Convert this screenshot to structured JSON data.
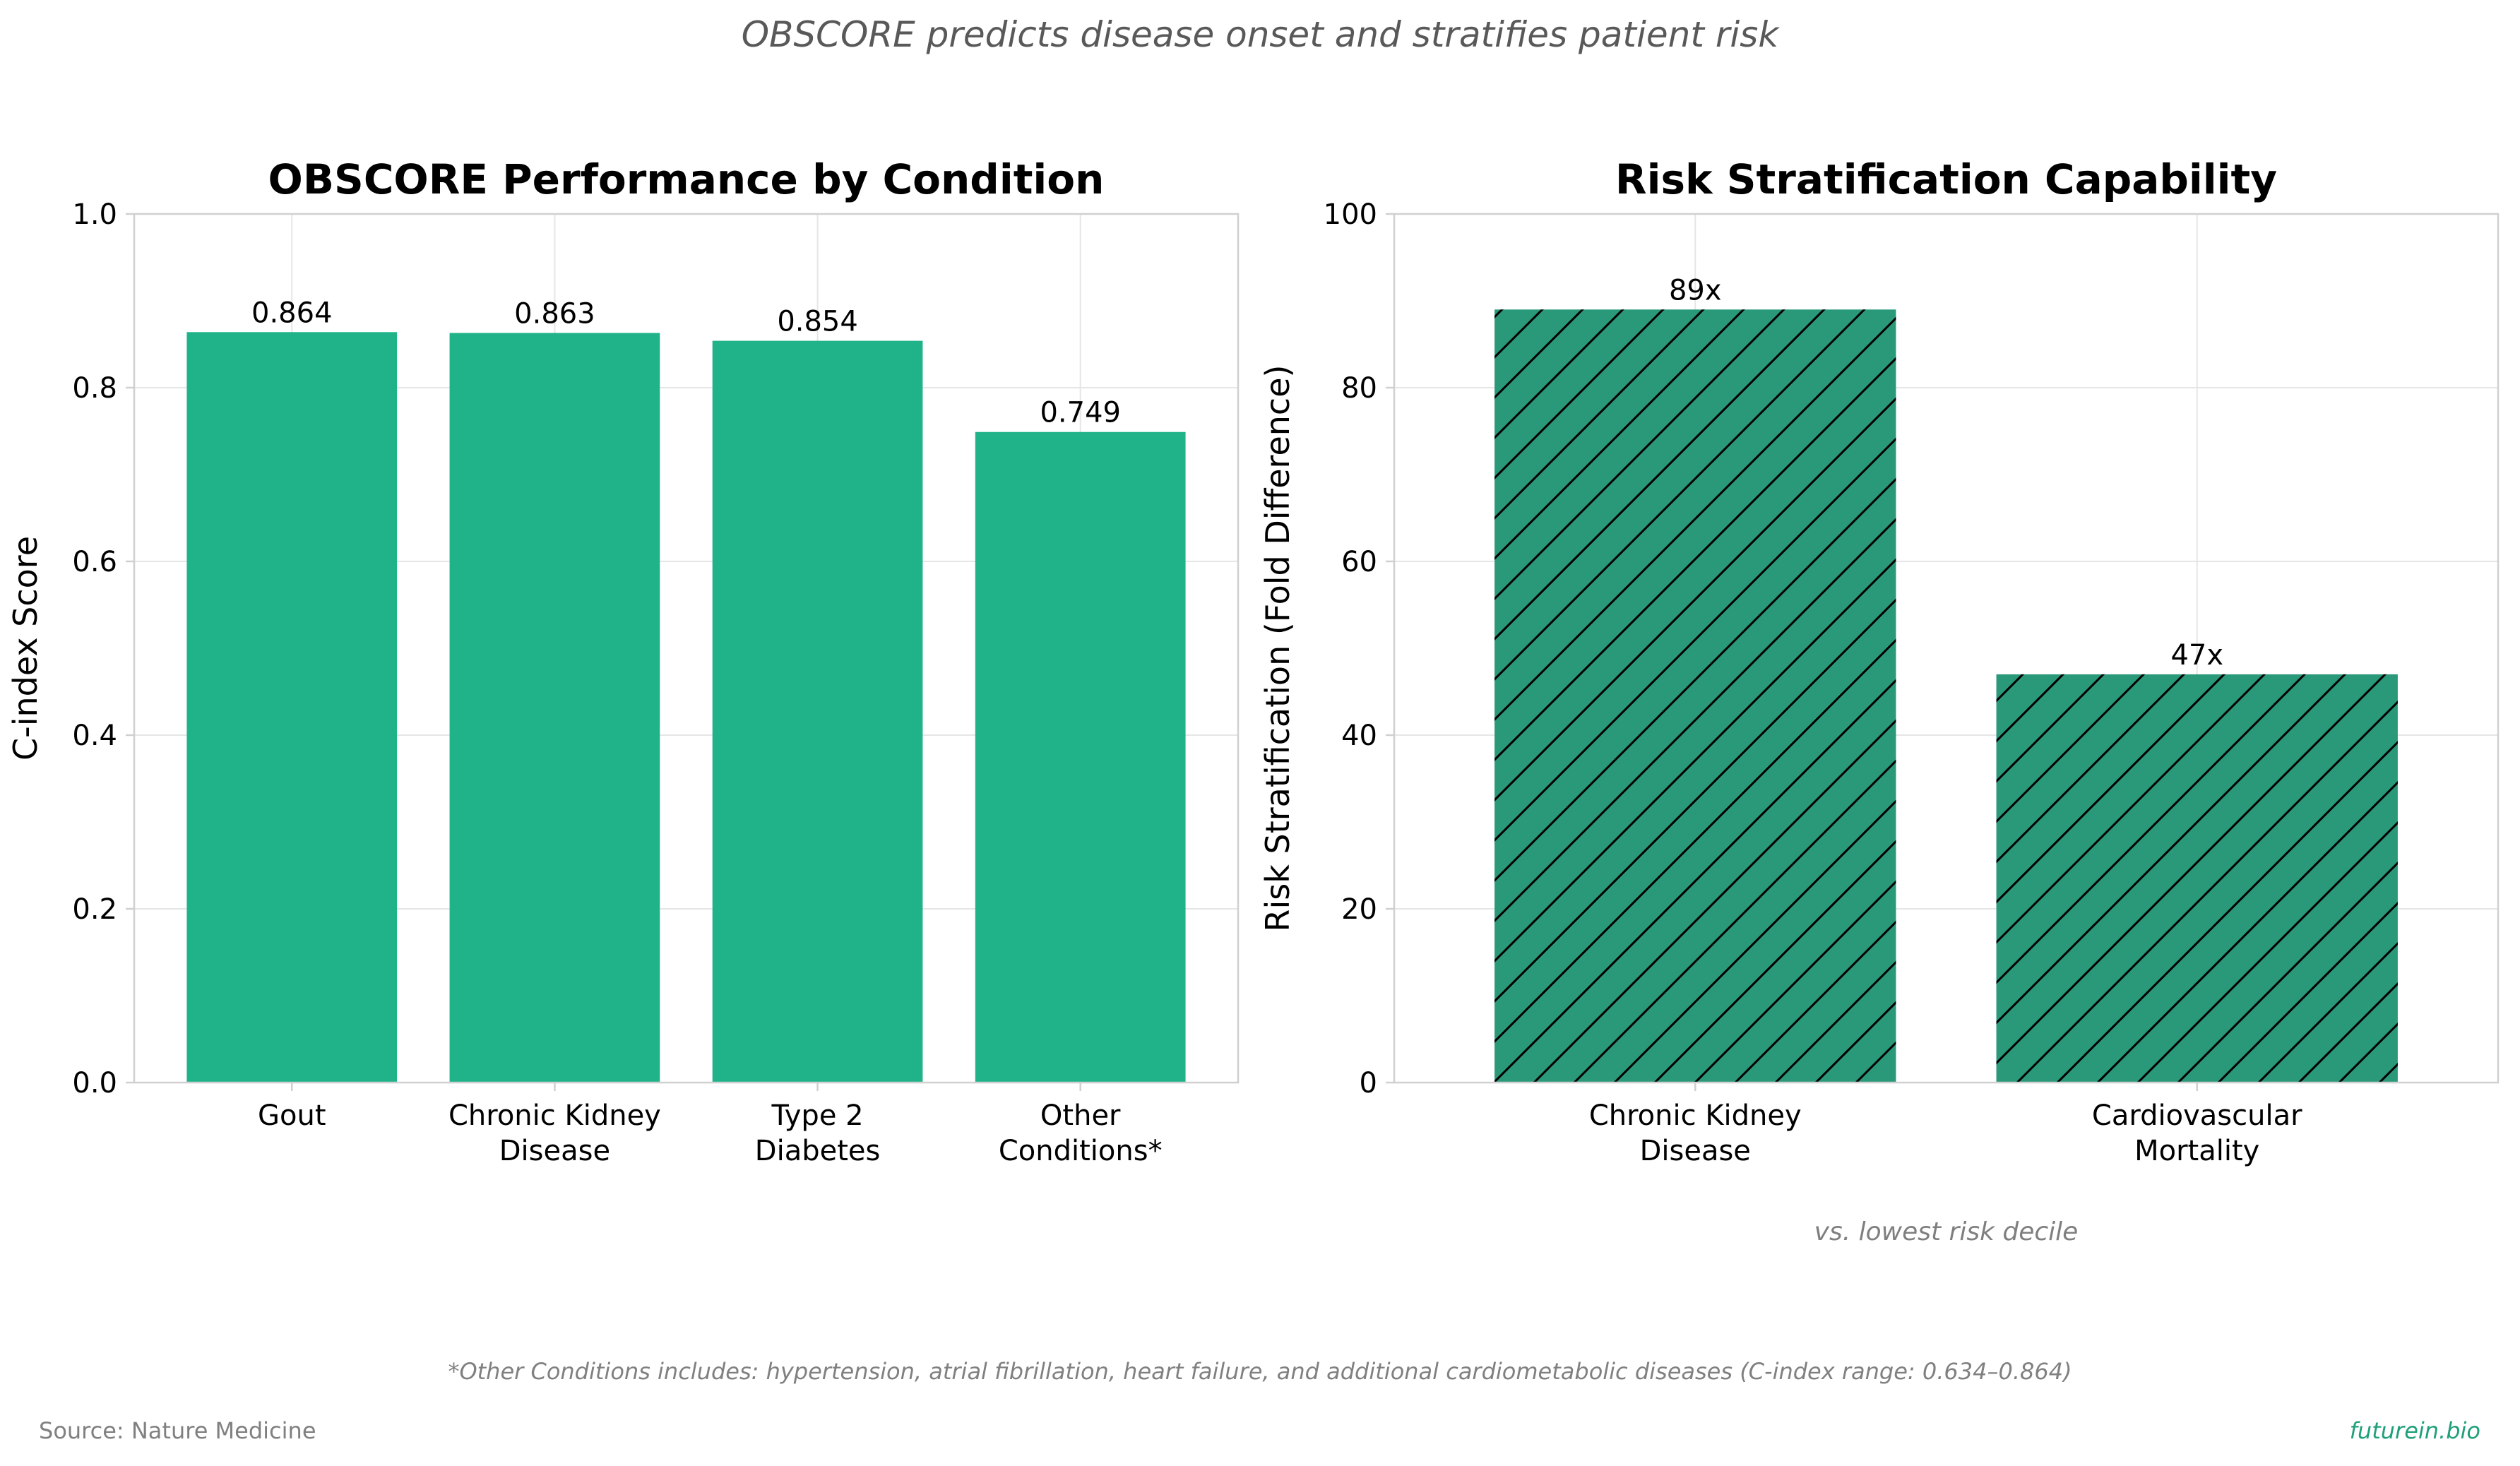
{
  "figure": {
    "suptitle": "OBSCORE predicts disease onset and stratifies patient risk",
    "footnote": "*Other Conditions includes: hypertension, atrial fibrillation, heart failure, and additional cardiometabolic diseases (C-index range: 0.634–0.864)",
    "source": "Source: Nature Medicine",
    "brand": "futurein.bio"
  },
  "colors": {
    "left_bar": "#20b389",
    "right_bar": "#2a9979",
    "hatch": "#000000",
    "grid": "#e6e6e6",
    "spine": "#d0d0d0",
    "suptitle": "#595959",
    "note": "#7f7f7f",
    "brand": "#20a07a"
  },
  "chart_data": [
    {
      "type": "bar",
      "title": "OBSCORE Performance by Condition",
      "xlabel": "",
      "ylabel": "C-index Score",
      "categories": [
        "Gout",
        "Chronic Kidney\nDisease",
        "Type 2\nDiabetes",
        "Other\nConditions*"
      ],
      "values": [
        0.864,
        0.863,
        0.854,
        0.749
      ],
      "value_labels": [
        "0.864",
        "0.863",
        "0.854",
        "0.749"
      ],
      "ylim": [
        0,
        1.0
      ],
      "yticks": [
        0.0,
        0.2,
        0.4,
        0.6,
        0.8,
        1.0
      ],
      "ytick_labels": [
        "0.0",
        "0.2",
        "0.4",
        "0.6",
        "0.8",
        "1.0"
      ],
      "grid": true,
      "legend": "none"
    },
    {
      "type": "bar",
      "title": "Risk Stratification Capability",
      "xlabel": "",
      "ylabel": "Risk Stratification (Fold Difference)",
      "annotation": "vs. lowest risk decile",
      "categories": [
        "Chronic Kidney\nDisease",
        "Cardiovascular\nMortality"
      ],
      "values": [
        89,
        47
      ],
      "value_labels": [
        "89x",
        "47x"
      ],
      "ylim": [
        0,
        100
      ],
      "yticks": [
        0,
        20,
        40,
        60,
        80,
        100
      ],
      "ytick_labels": [
        "0",
        "20",
        "40",
        "60",
        "80",
        "100"
      ],
      "hatch": "diagonal",
      "grid": true,
      "legend": "none"
    }
  ]
}
